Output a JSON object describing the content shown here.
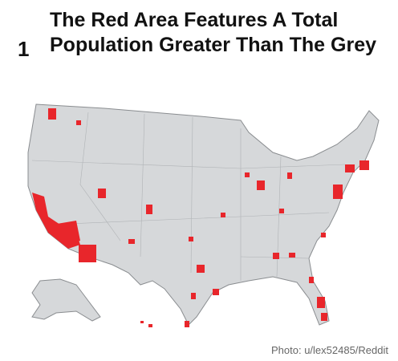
{
  "item": {
    "number": "1",
    "title": "The Red Area Features A Total Population Greater Than The Grey"
  },
  "image": {
    "credit": "Photo:  u/lex52485/Reddit"
  }
}
